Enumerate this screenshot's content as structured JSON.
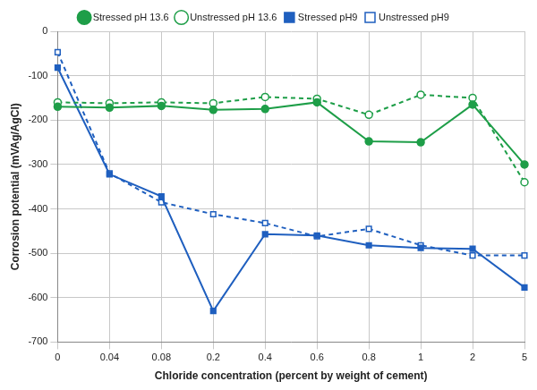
{
  "chart_data": {
    "type": "line",
    "x_label": "Chloride concentration (percent by weight of cement)",
    "y_label": "Corrosion potential (mVAg/AgCl)",
    "categories": [
      "0",
      "0.04",
      "0.08",
      "0.2",
      "0.4",
      "0.6",
      "0.8",
      "1",
      "2",
      "5"
    ],
    "series": [
      {
        "name": "Stressed pH 13.6",
        "color": "#1e9e48",
        "marker": "circle",
        "line_style": "solid",
        "values": [
          -170,
          -172,
          -168,
          -177,
          -175,
          -160,
          -248,
          -250,
          -165,
          -300
        ]
      },
      {
        "name": "Unstressed pH 13.6",
        "color": "#1e9e48",
        "marker": "open_circle",
        "line_style": "dashed",
        "values": [
          -160,
          -162,
          -160,
          -162,
          -148,
          -152,
          -188,
          -143,
          -150,
          -340
        ]
      },
      {
        "name": "Stressed pH9",
        "color": "#1f5fbf",
        "marker": "square",
        "line_style": "solid",
        "values": [
          -82,
          -322,
          -372,
          -630,
          -457,
          -460,
          -482,
          -488,
          -490,
          -577
        ]
      },
      {
        "name": "Unstressed pH9",
        "color": "#1f5fbf",
        "marker": "open_square",
        "line_style": "dashed",
        "values": [
          -47,
          -320,
          -385,
          -412,
          -432,
          -462,
          -445,
          -482,
          -505,
          -505
        ]
      }
    ],
    "ylim": [
      -700,
      0
    ],
    "yticks": [
      -700,
      -600,
      -500,
      -400,
      -300,
      -200,
      -100,
      0
    ],
    "grid": true,
    "legend": "top"
  }
}
